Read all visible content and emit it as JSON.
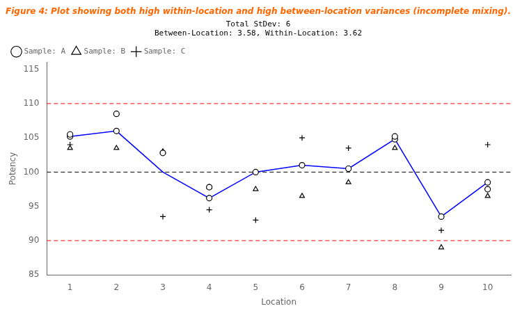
{
  "chart_data": {
    "type": "scatter",
    "title": "Figure 4: Plot showing both high within-location and high between-location variances (incomplete mixing).",
    "title_color": "#FF6600",
    "subtitle": [
      "Total StDev: 6",
      "Between-Location: 3.58, Within-Location: 3.62"
    ],
    "xlabel": "Location",
    "ylabel": "Potency",
    "xlim": [
      0.5,
      10.5
    ],
    "xticks": [
      1,
      2,
      3,
      4,
      5,
      6,
      7,
      8,
      9,
      10
    ],
    "ylim": [
      85,
      116
    ],
    "yticks": [
      85,
      90,
      95,
      100,
      105,
      110,
      115
    ],
    "grid": false,
    "legend": "upper left",
    "series": [
      {
        "name": "Sample: A",
        "type": "scatter",
        "marker": "circle",
        "color": "#000000",
        "x": [
          1,
          1,
          2,
          2,
          3,
          4,
          4,
          5,
          6,
          7,
          8,
          8,
          9,
          10,
          10
        ],
        "values": [
          105.2,
          105.5,
          106.0,
          108.5,
          102.8,
          96.2,
          97.8,
          100.0,
          101.0,
          100.5,
          104.8,
          105.2,
          93.5,
          98.5,
          97.5
        ]
      },
      {
        "name": "Sample: B",
        "type": "scatter",
        "marker": "triangle",
        "color": "#000000",
        "x": [
          1,
          2,
          3,
          4,
          5,
          6,
          7,
          8,
          9,
          10
        ],
        "values": [
          103.5,
          103.5,
          103.0,
          97.8,
          97.5,
          96.5,
          98.5,
          103.5,
          89.0,
          96.5
        ]
      },
      {
        "name": "Sample: C",
        "type": "scatter",
        "marker": "plus",
        "color": "#000000",
        "x": [
          1,
          3,
          4,
          5,
          6,
          7,
          9,
          10
        ],
        "values": [
          104.0,
          93.5,
          94.5,
          93.0,
          105.0,
          103.5,
          91.5,
          104.0
        ]
      },
      {
        "type": "line",
        "color": "#0000FF",
        "line_style": "solid",
        "x": [
          1,
          2,
          3,
          4,
          5,
          6,
          7,
          8,
          9,
          10
        ],
        "values": [
          105.2,
          106.0,
          100.0,
          96.2,
          100.0,
          101.0,
          100.5,
          104.8,
          93.5,
          98.5
        ]
      }
    ],
    "hlines": [
      {
        "value": 110,
        "color": "#FF0000",
        "line_style": "dashed"
      },
      {
        "value": 100,
        "color": "#000000",
        "line_style": "dashed"
      },
      {
        "value": 90,
        "color": "#FF0000",
        "line_style": "dashed"
      }
    ]
  }
}
